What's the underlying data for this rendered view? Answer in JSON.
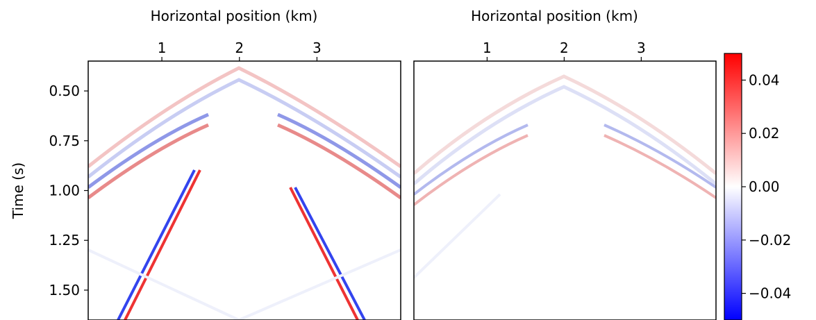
{
  "chart_data": [
    {
      "type": "image",
      "xlabel": "Horizontal position (km)",
      "ylabel": "Time (s)",
      "xlim": [
        0.05,
        4.08
      ],
      "ylim": [
        0.35,
        1.65
      ],
      "y_inverted": true,
      "xticks": [
        1,
        2,
        3
      ],
      "yticks": [
        {
          "value": 0.5,
          "label": "0.50"
        },
        {
          "value": 0.75,
          "label": "0.75"
        },
        {
          "value": 1.0,
          "label": "1.00"
        },
        {
          "value": 1.25,
          "label": "1.25"
        },
        {
          "value": 1.5,
          "label": "1.50"
        }
      ]
    },
    {
      "type": "image",
      "xlabel": "Horizontal position (km)",
      "xlim": [
        0.05,
        3.97
      ],
      "ylim": [
        0.35,
        1.65
      ],
      "y_inverted": true,
      "xticks": [
        1,
        2,
        3
      ]
    },
    {
      "type": "colorbar",
      "cmap": [
        "#0000ff",
        "#ffffff",
        "#ff0000"
      ],
      "ylim": [
        -0.05,
        0.05
      ],
      "yticks": [
        {
          "value": -0.04,
          "label": "−0.04"
        },
        {
          "value": -0.02,
          "label": "−0.02"
        },
        {
          "value": 0,
          "label": "0.00"
        },
        0.02,
        0.04
      ]
    }
  ]
}
